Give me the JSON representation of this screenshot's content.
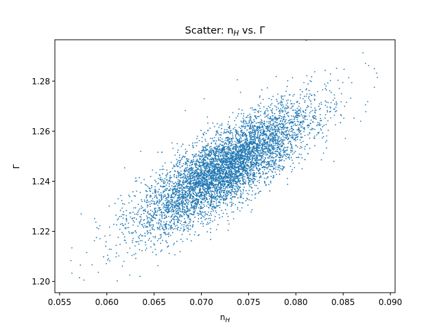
{
  "chart_data": {
    "type": "scatter",
    "title_main": "Scatter: n",
    "title_sub": "H",
    "title_rest": " vs. Γ",
    "xlabel_main": "n",
    "xlabel_sub": "H",
    "ylabel": "Γ",
    "xlim": [
      0.0545,
      0.0905
    ],
    "ylim": [
      1.1955,
      1.2965
    ],
    "xticks": [
      {
        "value": 0.055,
        "label": "0.055"
      },
      {
        "value": 0.06,
        "label": "0.060"
      },
      {
        "value": 0.065,
        "label": "0.065"
      },
      {
        "value": 0.07,
        "label": "0.070"
      },
      {
        "value": 0.075,
        "label": "0.075"
      },
      {
        "value": 0.08,
        "label": "0.080"
      },
      {
        "value": 0.085,
        "label": "0.085"
      },
      {
        "value": 0.09,
        "label": "0.090"
      }
    ],
    "yticks": [
      {
        "value": 1.2,
        "label": "1.20"
      },
      {
        "value": 1.22,
        "label": "1.22"
      },
      {
        "value": 1.24,
        "label": "1.24"
      },
      {
        "value": 1.26,
        "label": "1.26"
      },
      {
        "value": 1.28,
        "label": "1.28"
      }
    ],
    "grid": false,
    "marker_color": "#1f77b4",
    "series": [
      {
        "distribution": {
          "x_mean": 0.0725,
          "x_std": 0.0045,
          "y_mean": 1.245,
          "y_std": 0.0125,
          "correlation": 0.8,
          "count": 6000
        },
        "points": [
          [
            0.0562,
            1.2083
          ],
          [
            0.0563,
            1.2134
          ],
          [
            0.0563,
            1.2033
          ],
          [
            0.0571,
            1.2015
          ],
          [
            0.0572,
            1.2065
          ],
          [
            0.0587,
            1.2251
          ],
          [
            0.0591,
            1.2036
          ],
          [
            0.0603,
            1.2082
          ],
          [
            0.0611,
            1.2002
          ],
          [
            0.0612,
            1.233
          ],
          [
            0.0635,
            1.202
          ],
          [
            0.0654,
            1.2063
          ],
          [
            0.0683,
            1.2682
          ],
          [
            0.0703,
            1.273
          ],
          [
            0.0738,
            1.2805
          ],
          [
            0.0764,
            1.2765
          ],
          [
            0.082,
            1.2837
          ],
          [
            0.0843,
            1.2851
          ],
          [
            0.0851,
            1.2847
          ],
          [
            0.0858,
            1.2732
          ],
          [
            0.0871,
            1.2913
          ],
          [
            0.0874,
            1.2678
          ],
          [
            0.0876,
            1.2718
          ],
          [
            0.0877,
            1.2862
          ],
          [
            0.0883,
            1.2849
          ],
          [
            0.0883,
            1.2775
          ],
          [
            0.079,
            1.269
          ],
          [
            0.0805,
            1.2745
          ],
          [
            0.0814,
            1.2762
          ],
          [
            0.0832,
            1.278
          ],
          [
            0.0846,
            1.277
          ],
          [
            0.0655,
            1.217
          ],
          [
            0.0641,
            1.2125
          ],
          [
            0.0628,
            1.2195
          ],
          [
            0.0614,
            1.2148
          ],
          [
            0.0598,
            1.2181
          ]
        ]
      }
    ]
  }
}
